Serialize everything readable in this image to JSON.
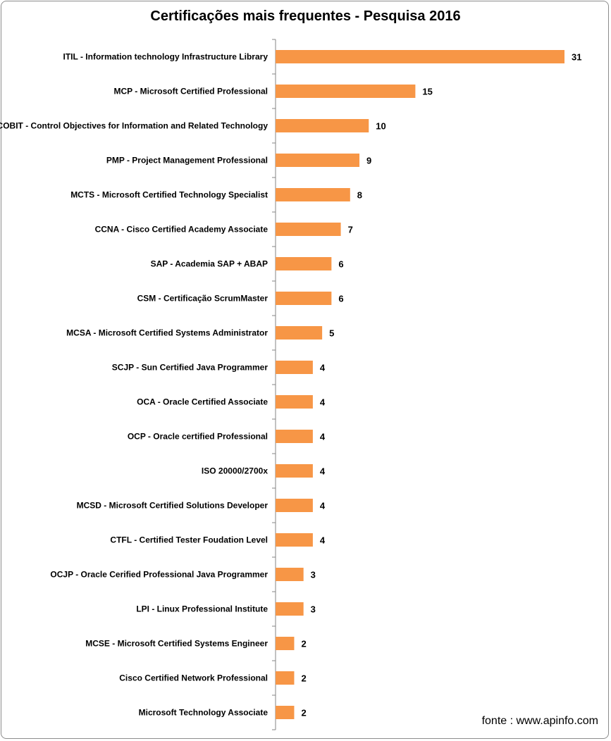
{
  "chart_data": {
    "type": "bar",
    "orientation": "horizontal",
    "title": "Certificações mais frequentes - Pesquisa 2016",
    "categories": [
      "ITIL - Information technology Infrastructure Library",
      "MCP - Microsoft Certified Professional",
      "COBIT - Control Objectives for Information and Related Technology",
      "PMP - Project Management Professional",
      "MCTS - Microsoft Certified Technology Specialist",
      "CCNA - Cisco Certified Academy Associate",
      "SAP - Academia SAP + ABAP",
      "CSM - Certificação ScrumMaster",
      "MCSA - Microsoft Certified Systems Administrator",
      "SCJP - Sun Certified Java Programmer",
      "OCA - Oracle Certified Associate",
      "OCP - Oracle certified Professional",
      "ISO 20000/2700x",
      "MCSD - Microsoft Certified Solutions Developer",
      "CTFL - Certified Tester Foudation Level",
      "OCJP - Oracle Cerified Professional Java Programmer",
      "LPI - Linux Professional Institute",
      "MCSE - Microsoft Certified Systems Engineer",
      "Cisco Certified Network Professional",
      "Microsoft Technology Associate"
    ],
    "values": [
      31,
      15,
      10,
      9,
      8,
      7,
      6,
      6,
      5,
      4,
      4,
      4,
      4,
      4,
      4,
      3,
      3,
      2,
      2,
      2
    ],
    "data_labels": [
      "31",
      "15",
      "10",
      "9",
      "8",
      "7",
      "6",
      "6",
      "5",
      "4",
      "4",
      "4",
      "4",
      "4",
      "4",
      "3",
      "3",
      "2",
      "2",
      "2"
    ],
    "xlim": [
      0,
      31
    ],
    "grid": false,
    "legend": "none",
    "bar_color": "#F79646"
  },
  "source_text": "fonte : www.apinfo.com"
}
